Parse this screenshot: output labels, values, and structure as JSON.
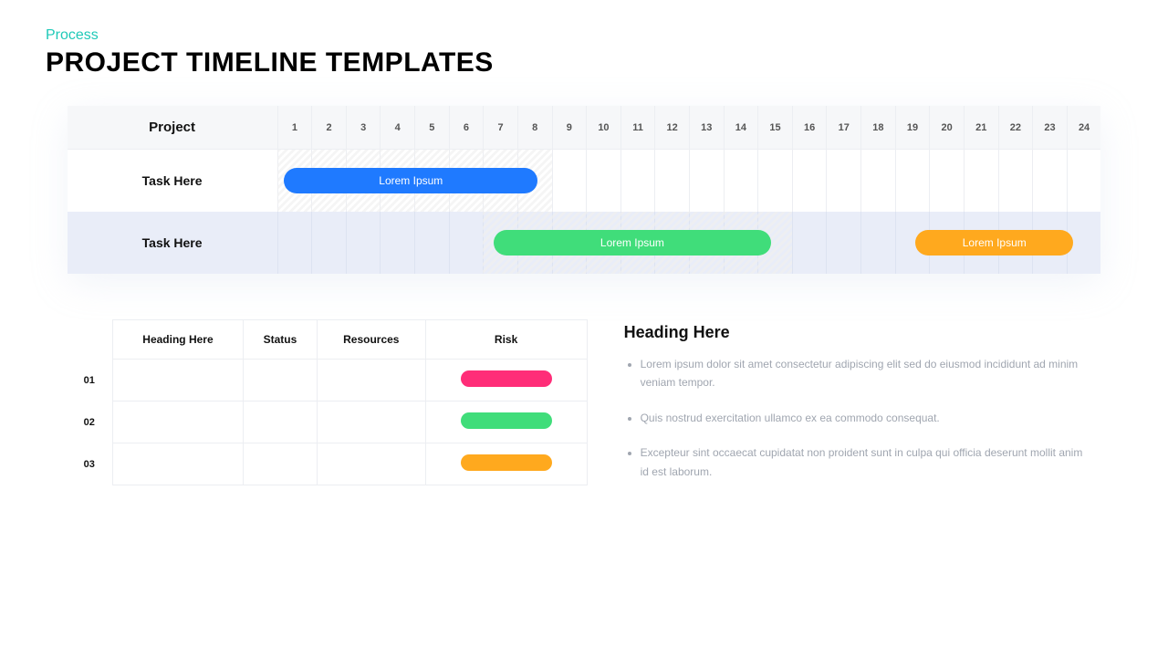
{
  "header": {
    "eyebrow": "Process",
    "title": "PROJECT TIMELINE TEMPLATES"
  },
  "gantt": {
    "project_column_label": "Project",
    "columns": 24,
    "ticks": [
      "1",
      "2",
      "3",
      "4",
      "5",
      "6",
      "7",
      "8",
      "9",
      "10",
      "11",
      "12",
      "13",
      "14",
      "15",
      "16",
      "17",
      "18",
      "19",
      "20",
      "21",
      "22",
      "23",
      "24"
    ],
    "header_bg": "#f6f7f9",
    "grid_color": "#eceef2",
    "alt_row_bg": "#e9edf8",
    "rows": [
      {
        "label": "Task Here",
        "alt": false,
        "hatch": {
          "start": 0,
          "end": 8
        },
        "bars": [
          {
            "label": "Lorem Ipsum",
            "start": 0.2,
            "end": 7.6,
            "color": "#1f7aff"
          }
        ]
      },
      {
        "label": "Task Here",
        "alt": true,
        "hatch": {
          "start": 6,
          "end": 15
        },
        "bars": [
          {
            "label": "Lorem Ipsum",
            "start": 6.3,
            "end": 14.4,
            "color": "#40dd7a"
          },
          {
            "label": "Lorem Ipsum",
            "start": 18.6,
            "end": 23.2,
            "color": "#ffa91e"
          }
        ]
      }
    ]
  },
  "table": {
    "columns": [
      "Heading Here",
      "Status",
      "Resources",
      "Risk"
    ],
    "rows": [
      {
        "idx": "01",
        "risk_color": "#ff2d78"
      },
      {
        "idx": "02",
        "risk_color": "#40dd7a"
      },
      {
        "idx": "03",
        "risk_color": "#ffa91e"
      }
    ]
  },
  "text": {
    "heading": "Heading Here",
    "bullets": [
      "Lorem ipsum dolor sit amet consectetur adipiscing elit sed do eiusmod incididunt ad minim veniam tempor.",
      "Quis nostrud exercitation ullamco ex ea commodo consequat.",
      "Excepteur sint occaecat cupidatat non proident sunt in culpa qui officia deserunt mollit anim id est laborum."
    ]
  },
  "style": {
    "eyebrow_color": "#1fc9b8",
    "title_color": "#000000",
    "card_shadow": "rgba(200,210,230,0.25)",
    "text_muted": "#a0a6b0"
  }
}
